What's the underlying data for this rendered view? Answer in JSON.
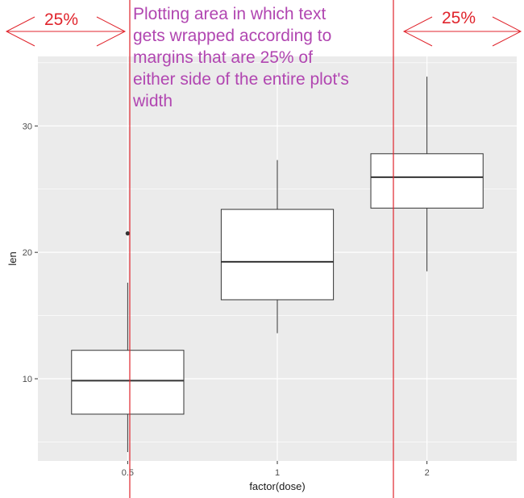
{
  "chart_data": {
    "type": "box",
    "title": "",
    "xlabel": "factor(dose)",
    "ylabel": "len",
    "categories": [
      "0.5",
      "1",
      "2"
    ],
    "ylim": [
      3.5,
      35.5
    ],
    "yticks": [
      10,
      20,
      30
    ],
    "grid": true,
    "boxes": [
      {
        "category": "0.5",
        "whisker_low": 4.2,
        "q1": 7.2,
        "median": 9.85,
        "q3": 12.25,
        "whisker_high": 17.6,
        "outliers": [
          21.5
        ]
      },
      {
        "category": "1",
        "whisker_low": 13.6,
        "q1": 16.25,
        "median": 19.25,
        "q3": 23.4,
        "whisker_high": 27.3,
        "outliers": []
      },
      {
        "category": "2",
        "whisker_low": 18.5,
        "q1": 23.5,
        "median": 25.95,
        "q3": 27.8,
        "whisker_high": 33.9,
        "outliers": []
      }
    ]
  },
  "annotations": {
    "left_pct": "25%",
    "right_pct": "25%",
    "note_lines": [
      "Plotting area in which text",
      "gets wrapped according to",
      "margins that are 25% of",
      "either side of the entire plot's",
      "width"
    ]
  },
  "colors": {
    "panel_bg": "#ebebeb",
    "grid_major": "#ffffff",
    "box_fill": "#ffffff",
    "box_stroke": "#333333",
    "margin_line": "#e0242c",
    "note_text": "#b146b1"
  }
}
